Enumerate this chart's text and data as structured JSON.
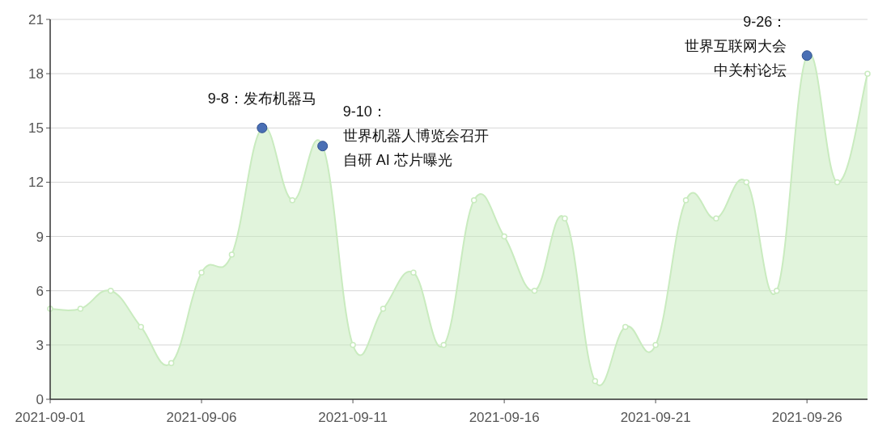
{
  "chart_data": {
    "type": "area",
    "x": [
      "2021-09-01",
      "2021-09-02",
      "2021-09-03",
      "2021-09-04",
      "2021-09-05",
      "2021-09-06",
      "2021-09-07",
      "2021-09-08",
      "2021-09-09",
      "2021-09-10",
      "2021-09-11",
      "2021-09-12",
      "2021-09-13",
      "2021-09-14",
      "2021-09-15",
      "2021-09-16",
      "2021-09-17",
      "2021-09-18",
      "2021-09-19",
      "2021-09-20",
      "2021-09-21",
      "2021-09-22",
      "2021-09-23",
      "2021-09-24",
      "2021-09-25",
      "2021-09-26",
      "2021-09-27",
      "2021-09-28"
    ],
    "values": [
      5,
      5,
      6,
      4,
      2,
      7,
      8,
      15,
      11,
      14,
      3,
      5,
      7,
      3,
      11,
      9,
      6,
      10,
      1,
      4,
      3,
      11,
      10,
      12,
      6,
      19,
      12,
      18
    ],
    "color": "#c9ebbf",
    "xlim": [
      "2021-09-01",
      "2021-09-28"
    ],
    "xticks": [
      "2021-09-01",
      "2021-09-06",
      "2021-09-11",
      "2021-09-16",
      "2021-09-21",
      "2021-09-26"
    ],
    "ylim": [
      0,
      21
    ],
    "yticks": [
      0,
      3,
      6,
      9,
      12,
      15,
      18,
      21
    ],
    "grid": "y",
    "marker": "circle",
    "annotations": [
      {
        "text": "9-8：发布机器马",
        "x": "2021-09-08",
        "y": 15
      },
      {
        "text": "9-10：",
        "x": "2021-09-10",
        "y": 14
      },
      "世界机器人博览会召开",
      "自研 AI 芯片曝光",
      {
        "text": "9-26：",
        "x": "2021-09-26",
        "y": 19
      },
      "世界互联网大会",
      "中关村论坛"
    ]
  }
}
